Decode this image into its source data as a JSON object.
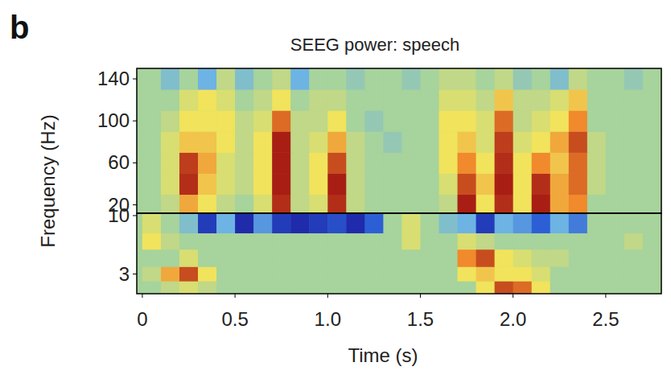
{
  "chart_data": [
    {
      "type": "heatmap",
      "panel": "b",
      "title": "SEEG power: speech",
      "y_label": "Frequency (Hz)",
      "tick_labels": "y",
      "xlim": [
        -0.03,
        2.8
      ],
      "x_edges": [
        0,
        0.1,
        0.2,
        0.3,
        0.4,
        0.5,
        0.6,
        0.7,
        0.8,
        0.9,
        1.0,
        1.1,
        1.2,
        1.3,
        1.4,
        1.5,
        1.6,
        1.7,
        1.8,
        1.9,
        2.0,
        2.1,
        2.2,
        2.3,
        2.4,
        2.5,
        2.6,
        2.7,
        2.8
      ],
      "ylim": [
        12,
        150
      ],
      "yticks": [
        20,
        60,
        100,
        140
      ],
      "y_edges": [
        12,
        30,
        50,
        70,
        90,
        110,
        130,
        150
      ],
      "zlim": [
        -1,
        1
      ],
      "cells": [
        [
          0,
          0.1,
          0.5,
          0.3,
          0.1,
          0,
          0.2,
          0.9,
          0.1,
          0.2,
          0.9,
          0.1,
          0,
          0,
          0,
          0,
          0.1,
          0.95,
          0.3,
          0.9,
          0.3,
          0.95,
          0.5,
          0.6,
          0,
          0,
          0,
          0
        ],
        [
          0,
          0.2,
          0.9,
          0.4,
          0.2,
          0.1,
          0.3,
          0.95,
          0.1,
          0.3,
          0.95,
          0.1,
          0,
          0,
          0,
          0,
          0.2,
          0.8,
          0.4,
          0.95,
          0.3,
          0.9,
          0.5,
          0.7,
          0.1,
          0,
          0,
          0
        ],
        [
          0,
          0.2,
          0.85,
          0.5,
          0.2,
          0.1,
          0.3,
          0.95,
          0.1,
          0.3,
          0.8,
          0.1,
          0,
          0,
          0,
          0,
          0.3,
          0.6,
          0.3,
          0.9,
          0.3,
          0.6,
          0.4,
          0.7,
          0.1,
          0,
          0,
          0
        ],
        [
          0,
          0.2,
          0.4,
          0.4,
          0.3,
          0.1,
          0.3,
          0.95,
          0.1,
          0.2,
          0.5,
          0.1,
          0,
          -0.1,
          0,
          0,
          0.3,
          0.4,
          0.2,
          0.85,
          0.2,
          0.3,
          0.5,
          0.8,
          0.1,
          0,
          0,
          0
        ],
        [
          0,
          0.1,
          0.3,
          0.3,
          0.3,
          0.1,
          0.2,
          0.7,
          0.1,
          0.1,
          0.3,
          0,
          -0.1,
          0,
          0,
          0,
          0.3,
          0.3,
          0.2,
          0.7,
          0.1,
          0.2,
          0.3,
          0.6,
          0,
          0,
          0,
          0
        ],
        [
          0,
          0,
          0.2,
          0.3,
          0.2,
          0,
          0.1,
          0.3,
          0,
          0.1,
          0.1,
          0,
          0,
          0,
          0,
          0,
          0.2,
          0.2,
          0.1,
          0.4,
          0.1,
          0.1,
          0.2,
          0.4,
          0,
          0,
          0,
          0
        ],
        [
          0,
          -0.2,
          0,
          -0.3,
          0.1,
          -0.2,
          0,
          0.1,
          -0.3,
          0,
          0,
          -0.1,
          0,
          0,
          -0.1,
          0,
          0.1,
          0.1,
          0,
          0.1,
          -0.1,
          0,
          -0.2,
          0.1,
          0,
          0,
          -0.1,
          0
        ]
      ]
    },
    {
      "type": "heatmap",
      "x_label": "Time (s)",
      "log": "y",
      "xlim": [
        -0.03,
        2.8
      ],
      "xticks": [
        0,
        0.5,
        {
          "value": 1,
          "label": "1.0"
        },
        1.5,
        {
          "value": 2,
          "label": "2.0"
        },
        2.5
      ],
      "x_edges": [
        0,
        0.1,
        0.2,
        0.3,
        0.4,
        0.5,
        0.6,
        0.7,
        0.8,
        0.9,
        1.0,
        1.1,
        1.2,
        1.3,
        1.4,
        1.5,
        1.6,
        1.7,
        1.8,
        1.9,
        2.0,
        2.1,
        2.2,
        2.3,
        2.4,
        2.5,
        2.6,
        2.7,
        2.8
      ],
      "ylim": [
        2,
        10.5
      ],
      "yticks": [
        3,
        10
      ],
      "y_edges": [
        2,
        2.6,
        3.5,
        5,
        7,
        10.5
      ],
      "zlim": [
        -1,
        1
      ],
      "cells": [
        [
          0,
          0.1,
          0.2,
          0.1,
          0,
          0,
          0,
          0,
          0,
          0,
          0,
          0,
          0,
          0,
          0,
          0,
          0,
          0,
          0.3,
          0.8,
          0.7,
          0.3,
          0,
          0,
          0,
          0,
          0,
          0
        ],
        [
          0.1,
          0.5,
          0.8,
          0.3,
          0,
          0,
          0,
          0,
          0,
          0,
          0,
          0,
          0,
          0,
          0,
          0,
          0,
          0.3,
          0.4,
          0.3,
          0.3,
          0.2,
          0,
          0,
          0,
          0,
          0,
          0
        ],
        [
          0,
          0,
          0.2,
          0,
          0,
          0,
          0,
          0,
          0,
          0,
          0,
          0,
          0,
          0,
          0,
          0,
          0,
          0.6,
          0.8,
          0.3,
          0.2,
          0.1,
          0.1,
          0,
          0,
          0,
          0,
          0
        ],
        [
          0.3,
          0.1,
          0,
          0,
          0,
          0,
          0,
          0,
          0,
          0,
          0,
          0,
          0,
          0,
          0.2,
          0,
          0,
          0.2,
          0.1,
          0,
          0,
          0,
          0,
          0,
          0,
          0,
          0.1,
          0
        ],
        [
          0.2,
          0,
          -0.2,
          -0.8,
          -0.3,
          -0.9,
          -0.4,
          -0.8,
          -0.9,
          -0.8,
          -0.7,
          -0.9,
          -0.6,
          0,
          0.2,
          0,
          -0.2,
          -0.3,
          -0.8,
          -0.3,
          -0.4,
          -0.6,
          -0.3,
          -0.5,
          0,
          0,
          0,
          0
        ]
      ]
    }
  ]
}
